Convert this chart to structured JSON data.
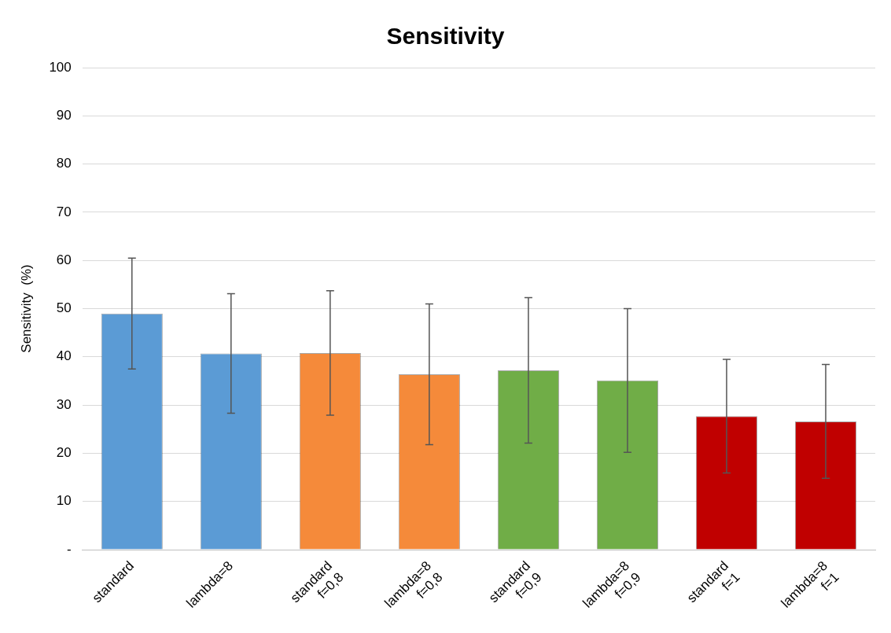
{
  "chart_data": {
    "type": "bar",
    "title": "Sensitivity",
    "ylabel": "Sensitivity  (%)",
    "categories": [
      "standard",
      "lambda=8",
      "standard\nf=0,8",
      "lambda=8\nf=0,8",
      "standard\nf=0,9",
      "lambda=8\nf=0,9",
      "standard\nf=1",
      "lambda=8\nf=1"
    ],
    "values": [
      49,
      40.7,
      40.8,
      36.4,
      37.2,
      35.1,
      27.7,
      26.6
    ],
    "colors": [
      "#5b9bd5",
      "#5b9bd5",
      "#f58a3a",
      "#f58a3a",
      "#70ad47",
      "#70ad47",
      "#c00000",
      "#c00000"
    ],
    "errors": [
      11.5,
      12.4,
      12.9,
      14.6,
      15.1,
      14.9,
      11.8,
      11.8
    ],
    "ylim": [
      0,
      100
    ],
    "yticks": [
      {
        "value": 0,
        "label": "-"
      },
      10,
      20,
      30,
      40,
      50,
      60,
      70,
      80,
      90,
      100
    ],
    "grid": "y",
    "legend": false
  }
}
